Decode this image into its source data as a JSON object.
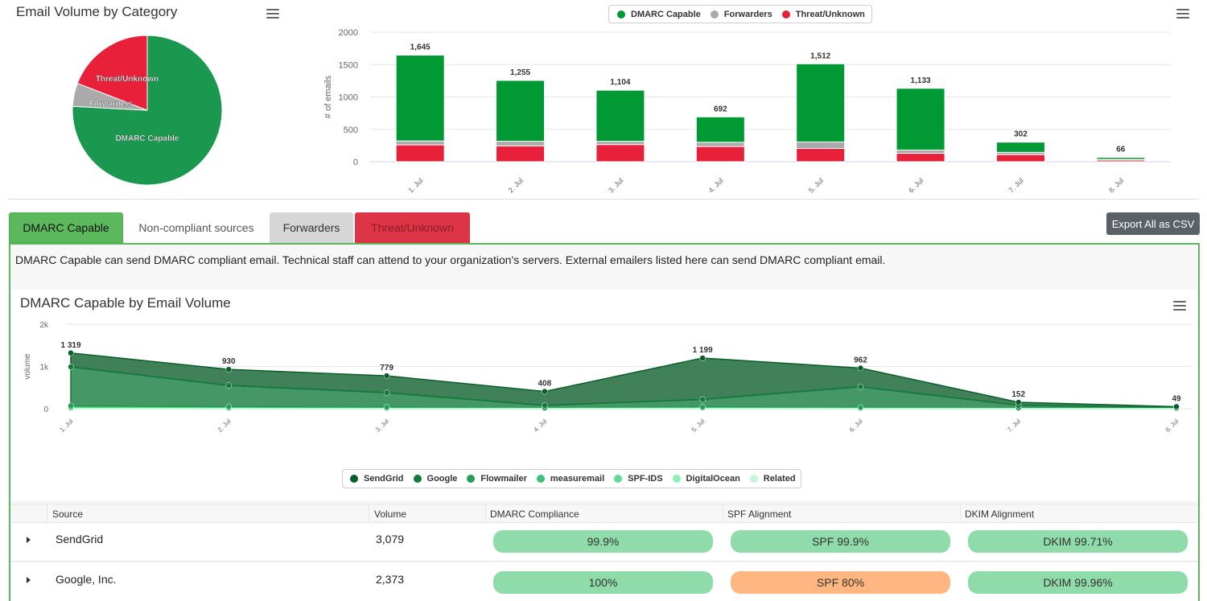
{
  "pie_panel": {
    "title": "Email Volume by Category",
    "chart_data": {
      "type": "pie",
      "slices": [
        {
          "label": "DMARC Capable",
          "value": 7.09,
          "color": "#1a9850"
        },
        {
          "label": "Forwarders",
          "value": 0.47,
          "color": "#aaaaaa"
        },
        {
          "label": "Threat/Unknown",
          "value": 1.79,
          "color": "#e8203a"
        }
      ]
    }
  },
  "bar_panel": {
    "chart_data": {
      "type": "bar",
      "stacked": true,
      "categories": [
        "1. Jul",
        "2. Jul",
        "3. Jul",
        "4. Jul",
        "5. Jul",
        "6. Jul",
        "7. Jul",
        "8. Jul"
      ],
      "series": [
        {
          "name": "Threat/Unknown",
          "color": "#e8203a",
          "values": [
            260,
            245,
            265,
            235,
            205,
            130,
            110,
            25
          ]
        },
        {
          "name": "Forwarders",
          "color": "#aaaaaa",
          "values": [
            60,
            70,
            50,
            65,
            100,
            50,
            35,
            10
          ]
        },
        {
          "name": "DMARC Capable",
          "color": "#009933",
          "values": [
            1325,
            940,
            789,
            392,
            1207,
            953,
            157,
            31
          ]
        }
      ],
      "totals": [
        "1,645",
        "1,255",
        "1,104",
        "692",
        "1,512",
        "1,133",
        "302",
        "66"
      ],
      "total_values": [
        1645,
        1255,
        1104,
        692,
        1512,
        1133,
        302,
        66
      ],
      "ylabel": "# of emails",
      "ylim": [
        0,
        2000
      ],
      "yticks": [
        "0",
        "500",
        "1000",
        "1500",
        "2000"
      ],
      "legend_position": "top"
    }
  },
  "tabs": [
    {
      "label": "DMARC Capable"
    },
    {
      "label": "Non-compliant sources"
    },
    {
      "label": "Forwarders"
    },
    {
      "label": "Threat/Unknown"
    }
  ],
  "export_button": "Export All as CSV",
  "description": "DMARC Capable can send DMARC compliant email. Technical staff can attend to your organization's servers. External emailers listed here can send DMARC compliant email.",
  "area_panel": {
    "title": "DMARC Capable by Email Volume",
    "chart_data": {
      "type": "area",
      "stacked": true,
      "categories": [
        "1. Jul",
        "2. Jul",
        "3. Jul",
        "4. Jul",
        "5. Jul",
        "6. Jul",
        "7. Jul",
        "8. Jul"
      ],
      "ylabel": "volume",
      "ylim": [
        0,
        2000
      ],
      "yticks": [
        "0",
        "1k",
        "2k"
      ],
      "totals": [
        "1 319",
        "930",
        "779",
        "408",
        "1 199",
        "962",
        "152",
        "49"
      ],
      "total_values": [
        1319,
        930,
        779,
        408,
        1199,
        962,
        152,
        49
      ],
      "series": [
        {
          "name": "SendGrid",
          "color": "#0b5e2a",
          "values": [
            329,
            380,
            400,
            330,
            979,
            442,
            72,
            19
          ]
        },
        {
          "name": "Google",
          "color": "#117a3a",
          "values": [
            920,
            500,
            339,
            58,
            180,
            490,
            60,
            20
          ]
        },
        {
          "name": "Flowmailer",
          "color": "#22a055",
          "values": [
            40,
            30,
            25,
            10,
            20,
            15,
            10,
            5
          ]
        },
        {
          "name": "measuremail",
          "color": "#3ec077",
          "values": [
            10,
            8,
            6,
            4,
            8,
            6,
            4,
            2
          ]
        },
        {
          "name": "SPF-IDS",
          "color": "#5fdc8f",
          "values": [
            10,
            6,
            5,
            3,
            6,
            5,
            3,
            1
          ]
        },
        {
          "name": "DigitalOcean",
          "color": "#8ff0b3",
          "values": [
            6,
            4,
            3,
            2,
            4,
            3,
            2,
            1
          ]
        },
        {
          "name": "Related",
          "color": "#c4f7d6",
          "values": [
            4,
            2,
            1,
            1,
            2,
            1,
            1,
            1
          ]
        }
      ],
      "legend_position": "bottom"
    }
  },
  "table": {
    "headers": [
      "Source",
      "Volume",
      "DMARC Compliance",
      "SPF Alignment",
      "DKIM Alignment"
    ],
    "rows": [
      {
        "source": "SendGrid",
        "volume": "3,079",
        "dmarc": "99.9%",
        "spf": "SPF 99.9%",
        "dkim": "DKIM 99.71%",
        "dmarc_color": "#8fdbaa",
        "spf_color": "#8fdbaa",
        "dkim_color": "#8fdbaa"
      },
      {
        "source": "Google, Inc.",
        "volume": "2,373",
        "dmarc": "100%",
        "spf": "SPF 80%",
        "dkim": "DKIM 99.96%",
        "dmarc_color": "#8fdbaa",
        "spf_color": "#ffb680",
        "dkim_color": "#8fdbaa"
      }
    ]
  }
}
